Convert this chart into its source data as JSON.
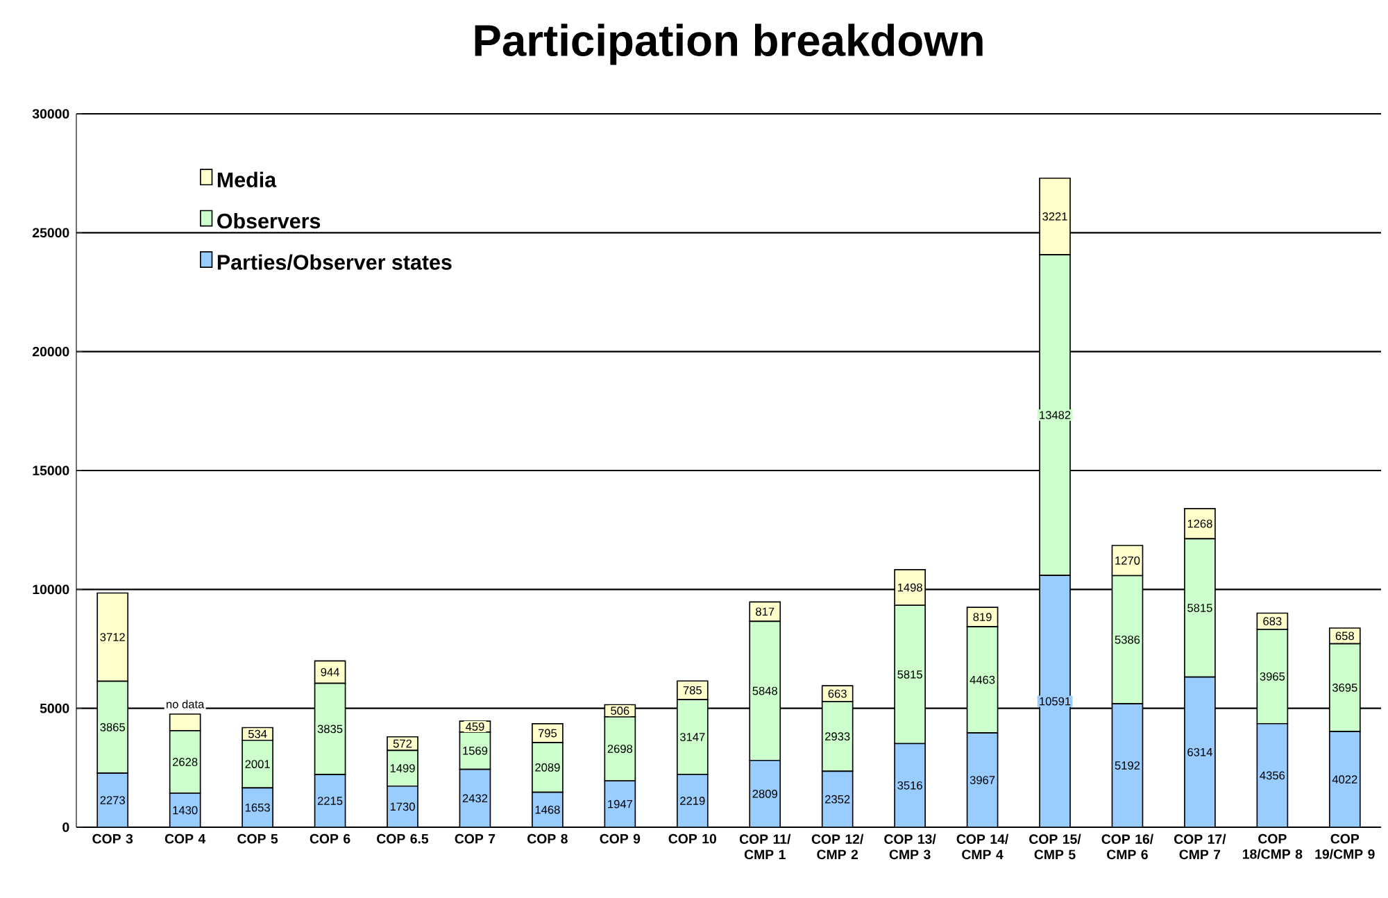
{
  "chart_data": {
    "type": "bar",
    "title": "Participation breakdown",
    "stacked": true,
    "categories": [
      "COP 3",
      "COP 4",
      "COP 5",
      "COP 6",
      "COP 6.5",
      "COP 7",
      "COP 8",
      "COP 9",
      "COP 10",
      "COP 11/ CMP 1",
      "COP 12/ CMP 2",
      "COP 13/ CMP 3",
      "COP 14/ CMP 4",
      "COP 15/ CMP 5",
      "COP 16/ CMP 6",
      "COP 17/ CMP 7",
      "COP 18/CMP 8",
      "COP 19/CMP 9"
    ],
    "series": [
      {
        "name": "Parties/Observer states",
        "color": "#99ccff",
        "values": [
          2273,
          1430,
          1653,
          2215,
          1730,
          2432,
          1468,
          1947,
          2219,
          2809,
          2352,
          3516,
          3967,
          10591,
          5192,
          6314,
          4356,
          4022
        ],
        "value_labels": [
          "2273",
          "1430",
          "1653",
          "2215",
          "1730",
          "2432",
          "1468",
          "1947",
          "2219",
          "2809",
          "2352",
          "3516",
          "3967",
          "10591",
          "5192",
          "6314",
          "4356",
          "4022"
        ]
      },
      {
        "name": "Observers",
        "color": "#ccffcc",
        "values": [
          3865,
          2628,
          2001,
          3835,
          1499,
          1569,
          2089,
          2698,
          3147,
          5848,
          2933,
          5815,
          4463,
          13482,
          5386,
          5815,
          3965,
          3695
        ],
        "value_labels": [
          "3865",
          "2628",
          "2001",
          "3835",
          "1499",
          "1569",
          "2089",
          "2698",
          "3147",
          "5848",
          "2933",
          "5815",
          "4463",
          "13482",
          "5386",
          "5815",
          "3965",
          "3695"
        ]
      },
      {
        "name": "Media",
        "color": "#ffffcc",
        "values": [
          3712,
          700,
          534,
          944,
          572,
          459,
          795,
          506,
          785,
          817,
          663,
          1498,
          819,
          3221,
          1270,
          1268,
          683,
          658
        ],
        "value_labels": [
          "3712",
          "no data",
          "534",
          "944",
          "572",
          "459",
          "795",
          "506",
          "785",
          "817",
          "663",
          "1498",
          "819",
          "3221",
          "1270",
          "1268",
          "683",
          "658"
        ]
      }
    ],
    "ylim": [
      0,
      30000
    ],
    "yticks": [
      0,
      5000,
      10000,
      15000,
      20000,
      25000,
      30000
    ],
    "grid": "y",
    "legend": "top left"
  }
}
